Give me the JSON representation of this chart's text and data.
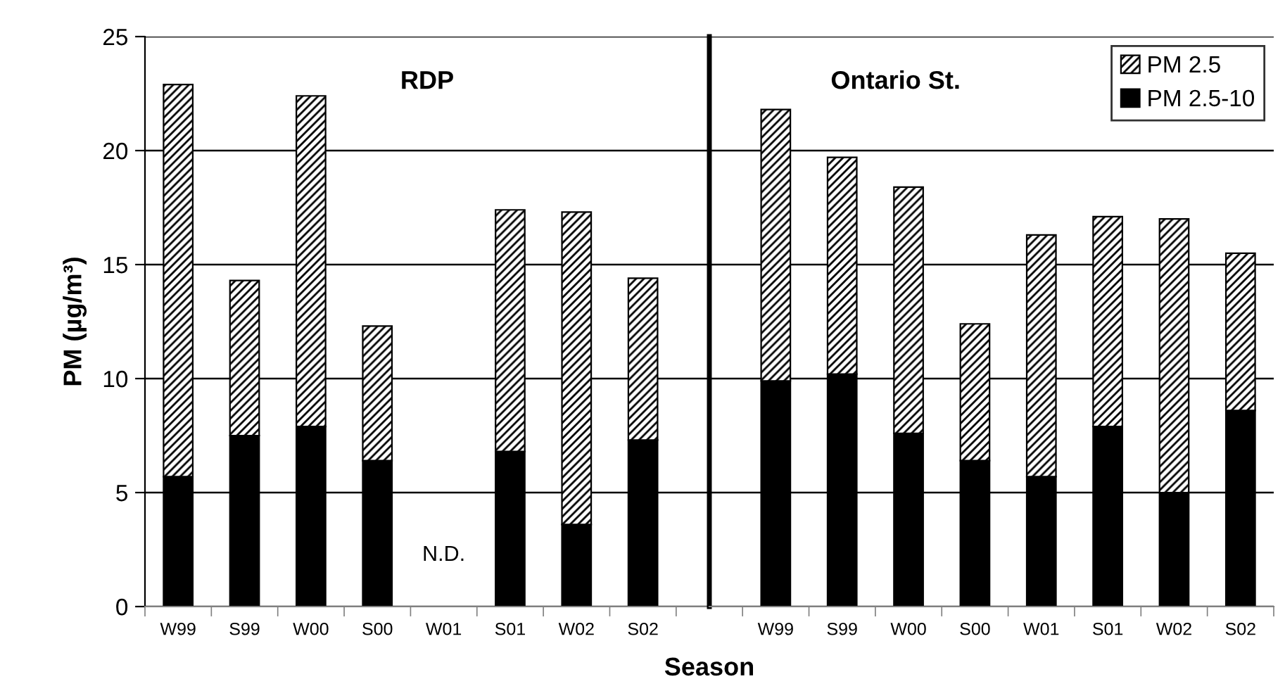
{
  "chart_data": [
    {
      "type": "bar",
      "stacked": true,
      "title": "RDP",
      "xlabel": "Season",
      "ylabel": "PM (µg/m³)",
      "categories": [
        "W99",
        "S99",
        "W00",
        "S00",
        "W01",
        "S01",
        "W02",
        "S02"
      ],
      "series": [
        {
          "color": "#000000",
          "values": [
            5.7,
            7.5,
            7.9,
            6.4,
            null,
            6.8,
            3.6,
            7.3
          ]
        },
        {
          "color": "#000000",
          "values": [
            17.2,
            6.8,
            14.5,
            5.9,
            null,
            10.6,
            13.7,
            7.1
          ]
        }
      ],
      "ylim": [
        0,
        25
      ],
      "yticks": [
        0,
        5,
        10,
        15,
        20,
        25
      ],
      "grid": "y",
      "annotations": [
        "N.D."
      ]
    },
    {
      "type": "bar",
      "stacked": true,
      "title": "Ontario St.",
      "legend": "top right",
      "tick_labels": "x",
      "categories": [
        "W99",
        "S99",
        "W00",
        "S00",
        "W01",
        "S01",
        "W02",
        "S02"
      ],
      "series": [
        {
          "name": "PM 2.5-10",
          "color": "#000000",
          "values": [
            9.9,
            10.2,
            7.6,
            6.4,
            5.7,
            7.9,
            5.0,
            8.6
          ]
        },
        {
          "name": "PM 2.5",
          "color": "#000000",
          "values": [
            11.9,
            9.5,
            10.8,
            6.0,
            10.6,
            9.2,
            12.0,
            6.9
          ]
        }
      ],
      "ylim": [
        0,
        25
      ],
      "yticks": [
        0,
        5,
        10,
        15,
        20,
        25
      ],
      "grid": "y"
    }
  ]
}
